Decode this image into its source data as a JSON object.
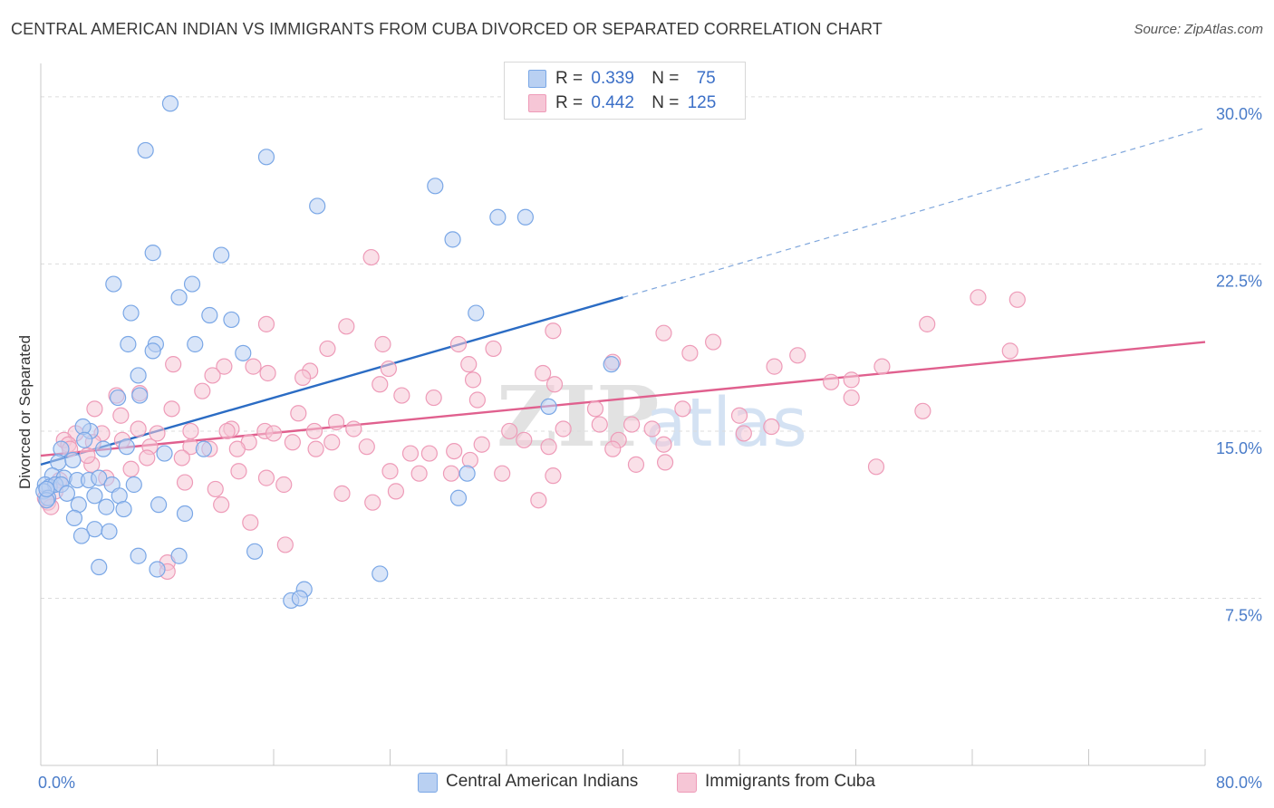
{
  "title": "CENTRAL AMERICAN INDIAN VS IMMIGRANTS FROM CUBA DIVORCED OR SEPARATED CORRELATION CHART",
  "source": "Source: ZipAtlas.com",
  "watermark": {
    "zip": "ZIP",
    "atlas": "atlas"
  },
  "legend": {
    "row1": {
      "r_label": "R =",
      "r_value": "0.339",
      "n_label": "N =",
      "n_value": "75"
    },
    "row2": {
      "r_label": "R =",
      "r_value": "0.442",
      "n_label": "N =",
      "n_value": "125"
    }
  },
  "chart_data": {
    "type": "scatter",
    "title": "CENTRAL AMERICAN INDIAN VS IMMIGRANTS FROM CUBA DIVORCED OR SEPARATED CORRELATION CHART",
    "xlabel": "",
    "ylabel": "Divorced or Separated",
    "xlim": [
      0,
      80
    ],
    "ylim": [
      0,
      31.5
    ],
    "x_ticks": [
      "0.0%",
      "80.0%"
    ],
    "y_ticks": [
      {
        "value": 7.5,
        "label": "7.5%"
      },
      {
        "value": 15.0,
        "label": "15.0%"
      },
      {
        "value": 22.5,
        "label": "22.5%"
      },
      {
        "value": 30.0,
        "label": "30.0%"
      }
    ],
    "grid": true,
    "legend_position": "top-center and bottom",
    "series": [
      {
        "name": "Central American Indians",
        "color": "#7aa7e6",
        "fill": "#b9d0f2",
        "line_color": "#2b6cc4",
        "r": 0.339,
        "n": 75,
        "trend": {
          "x0": 0,
          "y0": 13.5,
          "x1": 40,
          "y1": 21.0,
          "x_dash_end": 80,
          "y_dash_end": 28.6
        },
        "points": [
          [
            8.9,
            29.7
          ],
          [
            7.2,
            27.6
          ],
          [
            15.5,
            27.3
          ],
          [
            27.1,
            26.0
          ],
          [
            19.0,
            25.1
          ],
          [
            31.4,
            24.6
          ],
          [
            33.3,
            24.6
          ],
          [
            28.3,
            23.6
          ],
          [
            7.7,
            23.0
          ],
          [
            12.4,
            22.9
          ],
          [
            5.0,
            21.6
          ],
          [
            10.4,
            21.6
          ],
          [
            6.2,
            20.3
          ],
          [
            9.5,
            21.0
          ],
          [
            11.6,
            20.2
          ],
          [
            13.1,
            20.0
          ],
          [
            29.9,
            20.3
          ],
          [
            6.0,
            18.9
          ],
          [
            7.9,
            18.9
          ],
          [
            10.6,
            18.9
          ],
          [
            13.9,
            18.5
          ],
          [
            7.7,
            18.6
          ],
          [
            5.3,
            16.5
          ],
          [
            6.7,
            17.5
          ],
          [
            6.8,
            16.6
          ],
          [
            39.2,
            18.0
          ],
          [
            34.9,
            16.1
          ],
          [
            3.4,
            15.0
          ],
          [
            2.9,
            15.2
          ],
          [
            5.9,
            14.3
          ],
          [
            8.5,
            14.0
          ],
          [
            11.2,
            14.2
          ],
          [
            3.0,
            14.6
          ],
          [
            4.3,
            14.2
          ],
          [
            1.4,
            14.2
          ],
          [
            1.2,
            13.6
          ],
          [
            2.2,
            13.7
          ],
          [
            0.8,
            13.0
          ],
          [
            1.6,
            12.9
          ],
          [
            2.5,
            12.8
          ],
          [
            3.3,
            12.8
          ],
          [
            4.0,
            12.9
          ],
          [
            4.9,
            12.6
          ],
          [
            6.4,
            12.6
          ],
          [
            0.3,
            12.6
          ],
          [
            0.6,
            12.5
          ],
          [
            1.0,
            12.6
          ],
          [
            1.4,
            12.6
          ],
          [
            0.2,
            12.3
          ],
          [
            0.5,
            12.0
          ],
          [
            1.8,
            12.2
          ],
          [
            3.7,
            12.1
          ],
          [
            5.4,
            12.1
          ],
          [
            0.4,
            11.9
          ],
          [
            2.6,
            11.7
          ],
          [
            4.5,
            11.6
          ],
          [
            5.7,
            11.5
          ],
          [
            8.1,
            11.7
          ],
          [
            9.9,
            11.3
          ],
          [
            2.3,
            11.1
          ],
          [
            29.3,
            13.1
          ],
          [
            28.7,
            12.0
          ],
          [
            3.7,
            10.6
          ],
          [
            2.8,
            10.3
          ],
          [
            4.7,
            10.5
          ],
          [
            6.7,
            9.4
          ],
          [
            9.5,
            9.4
          ],
          [
            14.7,
            9.6
          ],
          [
            4.0,
            8.9
          ],
          [
            8.0,
            8.8
          ],
          [
            23.3,
            8.6
          ],
          [
            18.1,
            7.9
          ],
          [
            17.2,
            7.4
          ],
          [
            17.8,
            7.5
          ],
          [
            0.4,
            12.4
          ]
        ]
      },
      {
        "name": "Immigrants from Cuba",
        "color": "#ee9bb8",
        "fill": "#f6c6d6",
        "line_color": "#e0608e",
        "r": 0.442,
        "n": 125,
        "trend": {
          "x0": 0,
          "y0": 13.9,
          "x1": 80,
          "y1": 19.0
        },
        "points": [
          [
            22.7,
            22.8
          ],
          [
            64.4,
            21.0
          ],
          [
            67.1,
            20.9
          ],
          [
            60.9,
            19.8
          ],
          [
            15.5,
            19.8
          ],
          [
            21.0,
            19.7
          ],
          [
            35.2,
            19.5
          ],
          [
            42.8,
            19.4
          ],
          [
            23.5,
            18.9
          ],
          [
            28.7,
            18.9
          ],
          [
            31.1,
            18.7
          ],
          [
            19.7,
            18.7
          ],
          [
            46.2,
            19.0
          ],
          [
            44.6,
            18.5
          ],
          [
            52.0,
            18.4
          ],
          [
            66.6,
            18.6
          ],
          [
            39.3,
            18.1
          ],
          [
            14.6,
            17.9
          ],
          [
            18.5,
            17.7
          ],
          [
            23.9,
            17.8
          ],
          [
            29.4,
            18.0
          ],
          [
            9.1,
            18.0
          ],
          [
            12.6,
            17.9
          ],
          [
            15.6,
            17.6
          ],
          [
            18.0,
            17.4
          ],
          [
            11.8,
            17.5
          ],
          [
            34.5,
            17.6
          ],
          [
            50.4,
            17.9
          ],
          [
            57.8,
            17.9
          ],
          [
            23.3,
            17.1
          ],
          [
            29.7,
            17.3
          ],
          [
            35.3,
            17.1
          ],
          [
            54.3,
            17.2
          ],
          [
            11.1,
            16.8
          ],
          [
            5.2,
            16.6
          ],
          [
            6.8,
            16.7
          ],
          [
            24.8,
            16.6
          ],
          [
            27.0,
            16.5
          ],
          [
            30.0,
            16.4
          ],
          [
            55.7,
            16.5
          ],
          [
            9.0,
            16.0
          ],
          [
            5.5,
            15.7
          ],
          [
            3.7,
            16.0
          ],
          [
            17.7,
            15.8
          ],
          [
            20.3,
            15.4
          ],
          [
            38.1,
            16.0
          ],
          [
            44.1,
            16.0
          ],
          [
            48.0,
            15.7
          ],
          [
            60.6,
            15.9
          ],
          [
            50.2,
            15.2
          ],
          [
            42.0,
            15.1
          ],
          [
            40.6,
            15.3
          ],
          [
            38.4,
            15.3
          ],
          [
            35.9,
            15.1
          ],
          [
            32.2,
            15.0
          ],
          [
            21.5,
            15.1
          ],
          [
            18.8,
            15.0
          ],
          [
            15.4,
            15.0
          ],
          [
            13.1,
            15.1
          ],
          [
            8.0,
            14.9
          ],
          [
            6.7,
            15.1
          ],
          [
            4.2,
            14.9
          ],
          [
            2.4,
            14.9
          ],
          [
            16.0,
            14.9
          ],
          [
            10.3,
            15.0
          ],
          [
            1.6,
            14.6
          ],
          [
            1.9,
            14.4
          ],
          [
            3.6,
            14.5
          ],
          [
            5.6,
            14.6
          ],
          [
            12.8,
            15.0
          ],
          [
            30.3,
            14.4
          ],
          [
            33.2,
            14.6
          ],
          [
            39.7,
            14.6
          ],
          [
            42.8,
            14.4
          ],
          [
            48.3,
            14.9
          ],
          [
            14.3,
            14.5
          ],
          [
            17.3,
            14.5
          ],
          [
            20.0,
            14.5
          ],
          [
            22.4,
            14.3
          ],
          [
            7.5,
            14.3
          ],
          [
            10.3,
            14.3
          ],
          [
            11.6,
            14.2
          ],
          [
            13.5,
            14.2
          ],
          [
            18.9,
            14.2
          ],
          [
            25.4,
            14.0
          ],
          [
            28.4,
            14.1
          ],
          [
            39.3,
            14.2
          ],
          [
            9.7,
            13.8
          ],
          [
            7.3,
            13.8
          ],
          [
            3.5,
            13.5
          ],
          [
            6.2,
            13.3
          ],
          [
            13.6,
            13.2
          ],
          [
            15.5,
            12.9
          ],
          [
            24.0,
            13.2
          ],
          [
            26.0,
            13.1
          ],
          [
            28.2,
            13.1
          ],
          [
            31.7,
            13.1
          ],
          [
            35.2,
            13.0
          ],
          [
            57.4,
            13.4
          ],
          [
            9.9,
            12.7
          ],
          [
            4.5,
            12.9
          ],
          [
            1.3,
            12.8
          ],
          [
            16.7,
            12.6
          ],
          [
            20.7,
            12.2
          ],
          [
            34.2,
            11.9
          ],
          [
            22.8,
            11.8
          ],
          [
            12.4,
            11.7
          ],
          [
            1.0,
            12.3
          ],
          [
            0.3,
            12.0
          ],
          [
            0.5,
            11.8
          ],
          [
            14.4,
            10.9
          ],
          [
            16.8,
            9.9
          ],
          [
            8.7,
            9.1
          ],
          [
            8.7,
            8.7
          ],
          [
            2.0,
            14.2
          ],
          [
            3.2,
            13.9
          ],
          [
            26.7,
            14.0
          ],
          [
            34.9,
            14.3
          ],
          [
            55.7,
            17.3
          ],
          [
            42.9,
            13.6
          ],
          [
            0.7,
            11.6
          ],
          [
            24.4,
            12.3
          ],
          [
            12.0,
            12.4
          ],
          [
            29.5,
            13.7
          ],
          [
            40.9,
            13.5
          ]
        ]
      }
    ]
  }
}
